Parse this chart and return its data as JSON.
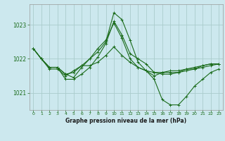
{
  "title": "Graphe pression niveau de la mer (hPa)",
  "bg_color": "#cce8ee",
  "grid_color": "#aacccc",
  "line_color": "#1a6b1a",
  "ylim": [
    1020.5,
    1023.6
  ],
  "xlim": [
    -0.5,
    23.5
  ],
  "yticks": [
    1021,
    1022,
    1023
  ],
  "xticks": [
    0,
    1,
    2,
    3,
    4,
    5,
    6,
    7,
    8,
    9,
    10,
    11,
    12,
    13,
    14,
    15,
    16,
    17,
    18,
    19,
    20,
    21,
    22,
    23
  ],
  "series": [
    {
      "x": [
        0,
        1,
        2,
        3,
        4,
        5,
        6,
        7,
        8,
        9,
        10,
        11,
        12,
        13,
        14,
        15,
        16,
        17,
        18,
        19,
        20,
        21,
        22,
        23
      ],
      "y": [
        1022.3,
        1022.0,
        1021.75,
        1021.75,
        1021.55,
        1021.6,
        1021.8,
        1022.0,
        1022.2,
        1022.5,
        1023.35,
        1023.15,
        1022.55,
        1021.9,
        1021.65,
        1021.4,
        1020.8,
        1020.65,
        1020.65,
        1020.9,
        1021.2,
        1021.4,
        1021.6,
        1021.7
      ]
    },
    {
      "x": [
        0,
        1,
        2,
        3,
        4,
        5,
        6,
        7,
        8,
        9,
        10,
        11,
        12,
        13,
        14,
        15,
        16,
        17,
        18,
        19,
        20,
        21,
        22,
        23
      ],
      "y": [
        1022.3,
        1022.0,
        1021.75,
        1021.75,
        1021.4,
        1021.4,
        1021.55,
        1021.75,
        1022.05,
        1022.45,
        1023.1,
        1022.7,
        1022.15,
        1022.0,
        1021.85,
        1021.6,
        1021.55,
        1021.55,
        1021.6,
        1021.7,
        1021.7,
        1021.8,
        1021.85,
        1021.85
      ]
    },
    {
      "x": [
        0,
        1,
        2,
        3,
        4,
        5,
        6,
        7,
        8,
        9,
        10,
        11,
        12,
        13,
        14,
        15,
        16,
        17,
        18,
        19,
        20,
        21,
        22,
        23
      ],
      "y": [
        1022.3,
        1022.0,
        1021.75,
        1021.75,
        1021.55,
        1021.45,
        1021.75,
        1022.0,
        1022.3,
        1022.55,
        1023.05,
        1022.6,
        1022.0,
        1021.75,
        1021.65,
        1021.5,
        1021.6,
        1021.65,
        1021.65,
        1021.7,
        1021.75,
        1021.8,
        1021.85,
        1021.85
      ]
    },
    {
      "x": [
        0,
        1,
        2,
        3,
        4,
        5,
        6,
        7,
        8,
        9,
        10,
        11,
        12,
        13,
        14,
        15,
        16,
        17,
        18,
        19,
        20,
        21,
        22,
        23
      ],
      "y": [
        1022.3,
        1022.0,
        1021.7,
        1021.7,
        1021.5,
        1021.65,
        1021.8,
        1021.8,
        1021.9,
        1022.1,
        1022.35,
        1022.1,
        1021.9,
        1021.75,
        1021.65,
        1021.6,
        1021.6,
        1021.6,
        1021.6,
        1021.65,
        1021.7,
        1021.75,
        1021.8,
        1021.85
      ]
    }
  ]
}
